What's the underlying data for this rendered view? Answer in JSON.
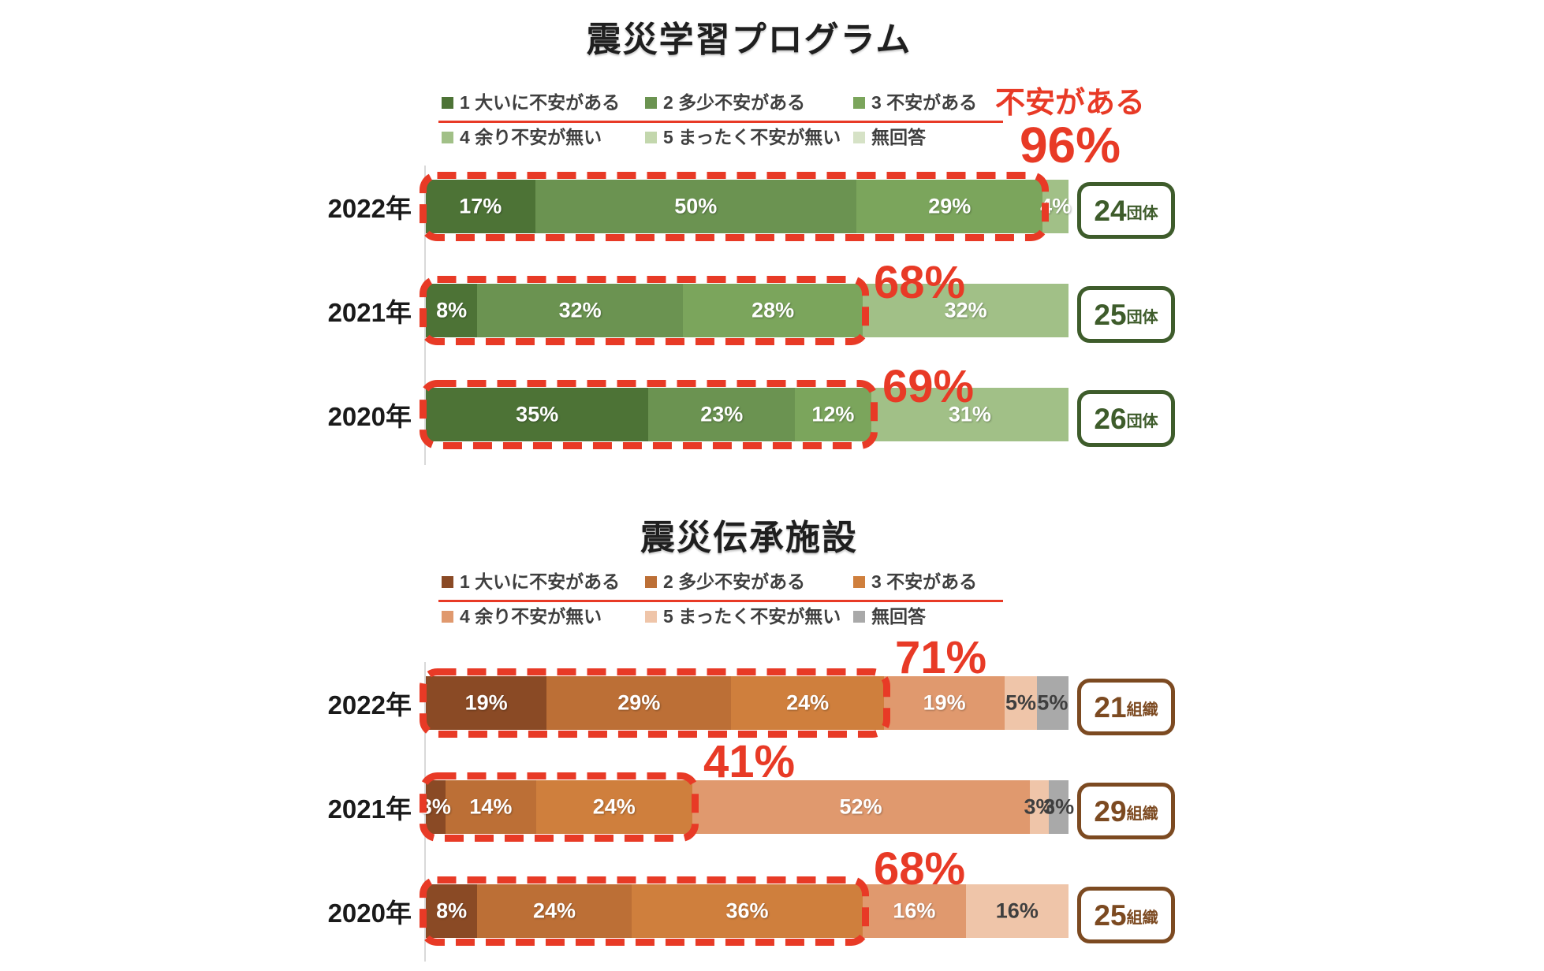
{
  "page": {
    "background": "#FFFFFF"
  },
  "chart_data": [
    {
      "type": "bar",
      "orientation": "horizontal",
      "stacked": true,
      "title": "震災学習プログラム",
      "categories": [
        "2022年",
        "2021年",
        "2020年"
      ],
      "series": [
        {
          "name": "1 大いに不安がある",
          "color": "#4D7336",
          "label_color": "#FFFFFF",
          "values": [
            17,
            8,
            35
          ]
        },
        {
          "name": "2 多少不安がある",
          "color": "#6B9351",
          "label_color": "#FFFFFF",
          "values": [
            50,
            32,
            23
          ]
        },
        {
          "name": "3 不安がある",
          "color": "#7BA55C",
          "label_color": "#FFFFFF",
          "values": [
            29,
            28,
            12
          ]
        },
        {
          "name": "4 余り不安が無い",
          "color": "#A1C087",
          "label_color": "#FFFFFF",
          "values": [
            4,
            32,
            31
          ]
        },
        {
          "name": "5 まったく不安が無い",
          "color": "#C3D7AD",
          "label_color": "#3F3F3F",
          "values": [
            0,
            0,
            0
          ]
        },
        {
          "name": "無回答",
          "color": "#D6E2C6",
          "label_color": "#3F3F3F",
          "values": [
            0,
            0,
            0
          ]
        }
      ],
      "value_suffix": "%",
      "xlim": [
        0,
        100
      ],
      "legend_position": "top",
      "counts": [
        "24",
        "25",
        "26"
      ],
      "count_unit": "団体",
      "accent_color": "#3E5C2B",
      "highlight": {
        "series_covered": 3,
        "color": "#E83A26"
      },
      "annotations": [
        {
          "row": 0,
          "heading": "不安がある",
          "text": "96%"
        },
        {
          "row": 1,
          "text": "68%"
        },
        {
          "row": 2,
          "text": "69%"
        }
      ]
    },
    {
      "type": "bar",
      "orientation": "horizontal",
      "stacked": true,
      "title": "震災伝承施設",
      "categories": [
        "2022年",
        "2021年",
        "2020年"
      ],
      "series": [
        {
          "name": "1 大いに不安がある",
          "color": "#8A4A25",
          "label_color": "#FFFFFF",
          "values": [
            19,
            3,
            8
          ]
        },
        {
          "name": "2 多少不安がある",
          "color": "#BC6F36",
          "label_color": "#FFFFFF",
          "values": [
            29,
            14,
            24
          ]
        },
        {
          "name": "3 不安がある",
          "color": "#CF7F3D",
          "label_color": "#FFFFFF",
          "values": [
            24,
            24,
            36
          ]
        },
        {
          "name": "4 余り不安が無い",
          "color": "#E0996E",
          "label_color": "#FFFFFF",
          "values": [
            19,
            52,
            16
          ]
        },
        {
          "name": "5 まったく不安が無い",
          "color": "#EFC5A9",
          "label_color": "#3F3F3F",
          "values": [
            5,
            3,
            16
          ]
        },
        {
          "name": "無回答",
          "color": "#A9A9A9",
          "label_color": "#3F3F3F",
          "values": [
            5,
            3,
            0
          ]
        }
      ],
      "value_suffix": "%",
      "xlim": [
        0,
        100
      ],
      "legend_position": "top",
      "counts": [
        "21",
        "29",
        "25"
      ],
      "count_unit": "組織",
      "accent_color": "#7C4A21",
      "highlight": {
        "series_covered": 3,
        "color": "#E83A26"
      },
      "annotations": [
        {
          "row": 0,
          "text": "71%"
        },
        {
          "row": 1,
          "text": "41%"
        },
        {
          "row": 2,
          "text": "68%"
        }
      ]
    }
  ]
}
